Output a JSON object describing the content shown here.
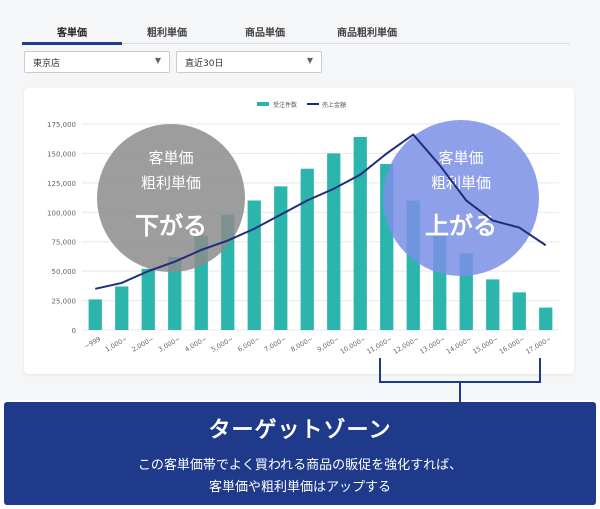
{
  "tabs": [
    {
      "label": "客単価",
      "active": true
    },
    {
      "label": "粗利単価",
      "active": false
    },
    {
      "label": "商品単価",
      "active": false
    },
    {
      "label": "商品粗利単価",
      "active": false
    }
  ],
  "filters": {
    "store": "東京店",
    "period": "直近30日"
  },
  "colors": {
    "bar": "#2bb5ad",
    "line": "#1f2d7a",
    "accent": "#1f3a8a",
    "circle_left": "#8c8c8c",
    "circle_right": "#7b8fe6"
  },
  "circles": {
    "left": {
      "line1": "客単価",
      "line2": "粗利単価",
      "line3": "下がる"
    },
    "right": {
      "line1": "客単価",
      "line2": "粗利単価",
      "line3": "上がる"
    }
  },
  "callout": {
    "title": "ターゲットゾーン",
    "line1": "この客単価帯でよく買われる商品の販促を強化すれば、",
    "line2": "客単価や粗利単価はアップする"
  },
  "chart_data": {
    "type": "bar",
    "categories": [
      "~999",
      "1,000~",
      "2,000~",
      "3,000~",
      "4,000~",
      "5,000~",
      "6,000~",
      "7,000~",
      "8,000~",
      "9,000~",
      "10,000~",
      "11,000~",
      "12,000~",
      "13,000~",
      "14,000~",
      "15,000~",
      "16,000~",
      "17,000~"
    ],
    "series": [
      {
        "name": "受注件数",
        "type": "bar",
        "values": [
          26000,
          37000,
          52000,
          62000,
          80000,
          98000,
          110000,
          122000,
          137000,
          150000,
          164000,
          141000,
          110000,
          80000,
          65000,
          43000,
          32000,
          19000
        ]
      },
      {
        "name": "売上金額",
        "type": "line",
        "values": [
          35000,
          40000,
          50000,
          58000,
          68000,
          76000,
          86000,
          98000,
          110000,
          120000,
          132000,
          150000,
          166000,
          140000,
          110000,
          93000,
          87000,
          72000
        ]
      }
    ],
    "ylim": [
      0,
      175000
    ],
    "yticks": [
      "0",
      "25,000",
      "50,000",
      "75,000",
      "100,000",
      "125,000",
      "150,000",
      "175,000"
    ],
    "grid": true,
    "legend": "top-center"
  }
}
